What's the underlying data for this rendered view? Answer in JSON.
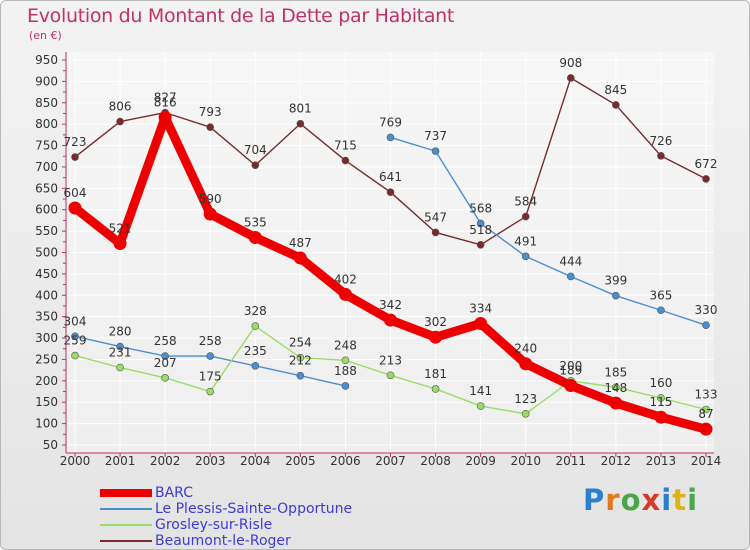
{
  "header": {
    "title": "Evolution du Montant de la Dette par Habitant",
    "unit": "(en €)"
  },
  "brand": {
    "text": "Proxiti",
    "colors": [
      "#2a7fcf",
      "#e07a1a",
      "#4aa64a",
      "#d33a2a",
      "#2a7fcf",
      "#e0b21a",
      "#4aa64a"
    ]
  },
  "chart_data": {
    "type": "line",
    "x": [
      "2000",
      "2001",
      "2002",
      "2003",
      "2004",
      "2005",
      "2006",
      "2007",
      "2008",
      "2009",
      "2010",
      "2011",
      "2012",
      "2013",
      "2014"
    ],
    "ylim": [
      50,
      950
    ],
    "yticks": [
      50,
      100,
      150,
      200,
      250,
      300,
      350,
      400,
      450,
      500,
      550,
      600,
      650,
      700,
      750,
      800,
      850,
      900,
      950
    ],
    "grid": true,
    "legend_position": "bottom-left",
    "series": [
      {
        "name": "Beaumont-le-Roger",
        "color": "#7a2a2a",
        "values": [
          723,
          806,
          827,
          793,
          704,
          801,
          715,
          641,
          547,
          518,
          584,
          908,
          845,
          726,
          672
        ]
      },
      {
        "name": "Le Plessis-Sainte-Opportune",
        "color": "#4a8fd0",
        "values": [
          304,
          280,
          258,
          258,
          235,
          212,
          188,
          769,
          737,
          568,
          491,
          444,
          399,
          365,
          330
        ]
      },
      {
        "name": "Grosley-sur-Risle",
        "color": "#99dd66",
        "values": [
          259,
          231,
          207,
          175,
          328,
          254,
          248,
          213,
          181,
          141,
          123,
          200,
          185,
          160,
          133
        ]
      },
      {
        "name": "BARC",
        "color": "#ee0000",
        "values": [
          604,
          521,
          816,
          590,
          535,
          487,
          402,
          342,
          302,
          334,
          240,
          189,
          148,
          115,
          87
        ]
      }
    ]
  }
}
